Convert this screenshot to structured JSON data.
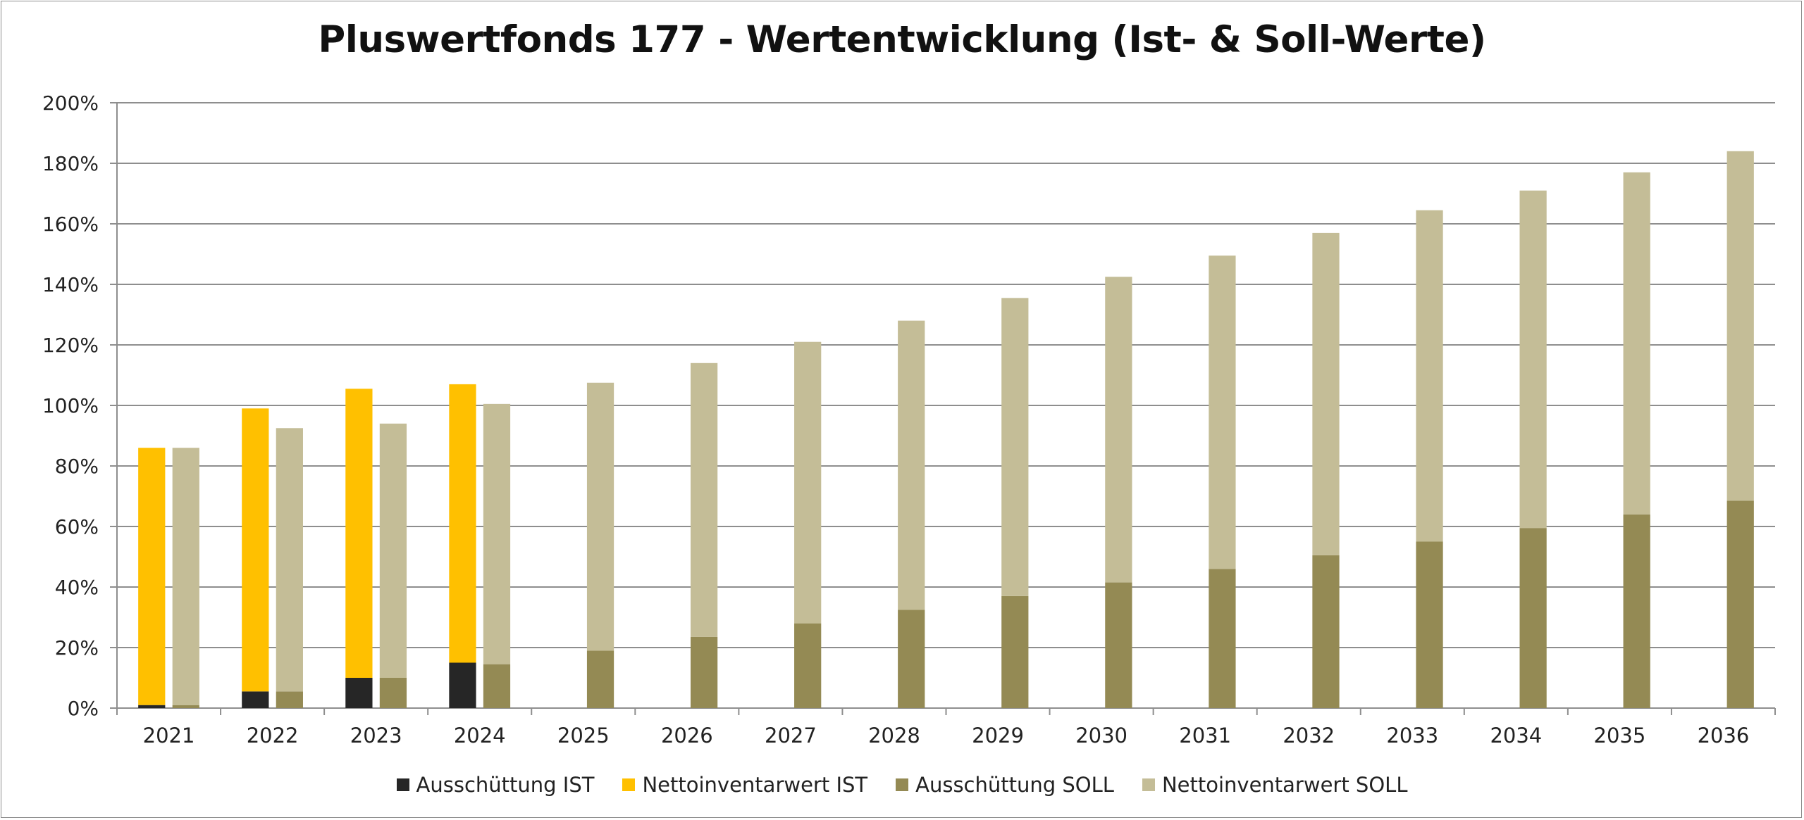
{
  "chart_data": {
    "type": "bar",
    "title": "Pluswertfonds 177 - Wertentwicklung (Ist- & Soll-Werte)",
    "xlabel": "",
    "ylabel": "",
    "ylim": [
      0,
      200
    ],
    "yticks": [
      "0%",
      "20%",
      "40%",
      "60%",
      "80%",
      "100%",
      "120%",
      "140%",
      "160%",
      "180%",
      "200%"
    ],
    "grid": true,
    "legend_position": "bottom",
    "categories": [
      "2021",
      "2022",
      "2023",
      "2024",
      "2025",
      "2026",
      "2027",
      "2028",
      "2029",
      "2030",
      "2031",
      "2032",
      "2033",
      "2034",
      "2035",
      "2036"
    ],
    "series": [
      {
        "name": "Ausschüttung IST",
        "stack": "IST",
        "color": "#262626",
        "values": [
          1,
          5.5,
          10,
          15,
          null,
          null,
          null,
          null,
          null,
          null,
          null,
          null,
          null,
          null,
          null,
          null
        ]
      },
      {
        "name": "Nettoinventarwert IST",
        "stack": "IST",
        "color": "#ffc000",
        "values": [
          85,
          93.5,
          95.5,
          92,
          null,
          null,
          null,
          null,
          null,
          null,
          null,
          null,
          null,
          null,
          null,
          null
        ]
      },
      {
        "name": "Ausschüttung SOLL",
        "stack": "SOLL",
        "color": "#948a54",
        "values": [
          1,
          5.5,
          10,
          14.5,
          19,
          23.5,
          28,
          32.5,
          37,
          41.5,
          46,
          50.5,
          55,
          59.5,
          64,
          68.5
        ]
      },
      {
        "name": "Nettoinventarwert SOLL",
        "stack": "SOLL",
        "color": "#c4bd97",
        "values": [
          85,
          87,
          84,
          86,
          88.5,
          90.5,
          93,
          95.5,
          98.5,
          101,
          103.5,
          106.5,
          109.5,
          111.5,
          113,
          115.5
        ]
      }
    ]
  }
}
